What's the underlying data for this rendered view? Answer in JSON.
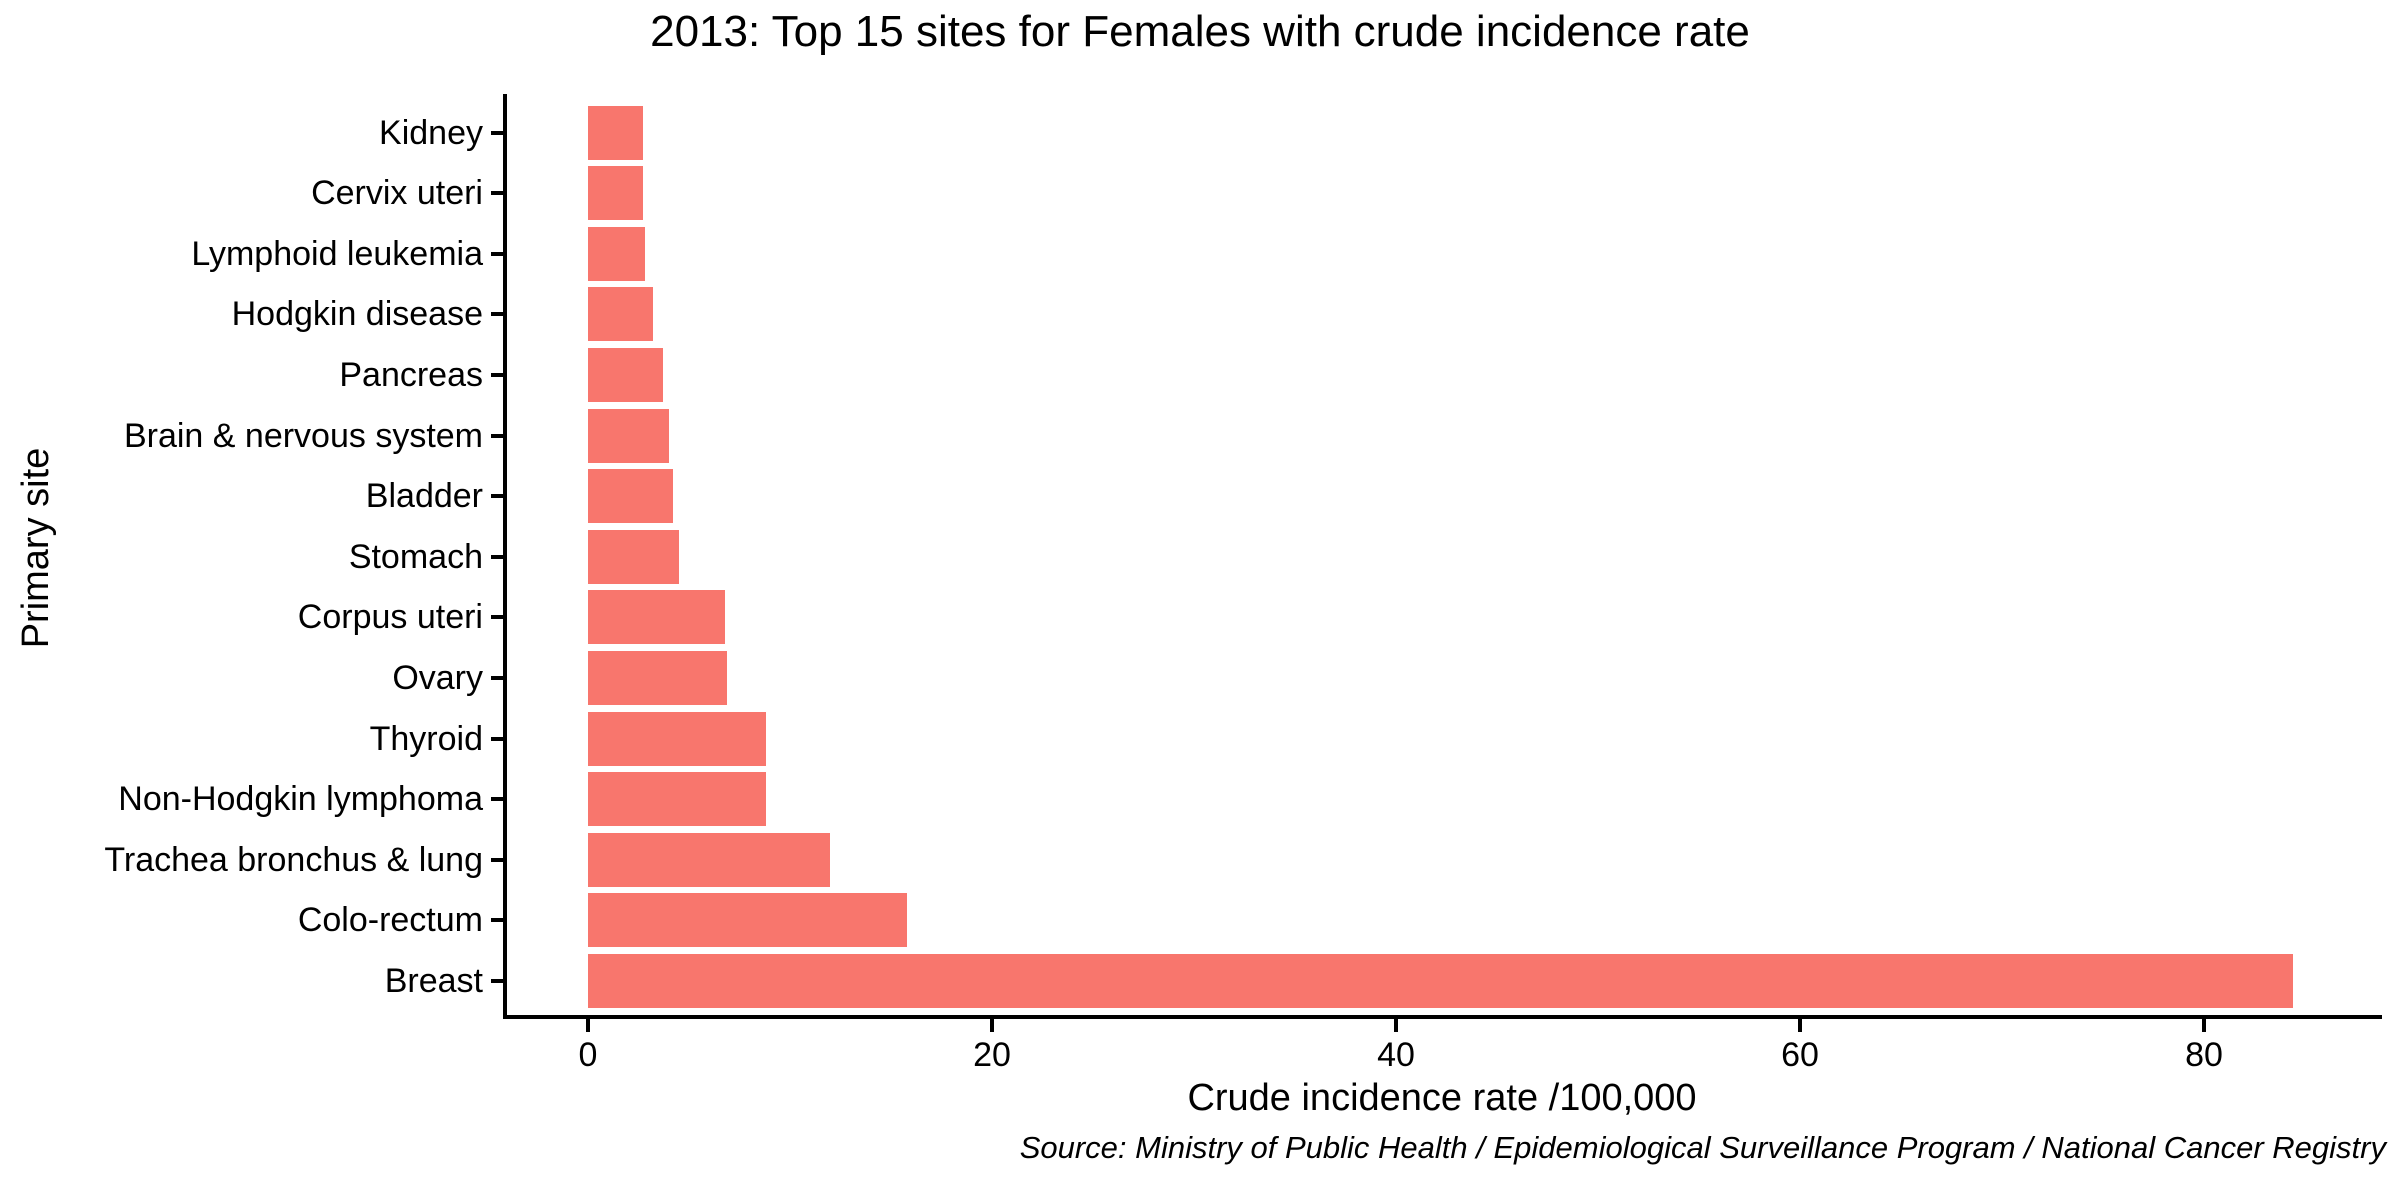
{
  "title": "2013: Top 15 sites for Females with crude incidence rate",
  "source_note": "Source: Ministry of Public Health / Epidemiological Surveillance Program / National Cancer Registry",
  "colors": {
    "bar": "#F8766D",
    "axis": "#000000",
    "text": "#000000",
    "background": "#FFFFFF"
  },
  "chart_data": {
    "type": "bar",
    "orientation": "horizontal",
    "title": "2013: Top 15 sites for Females with crude incidence rate",
    "xlabel": "Crude incidence rate /100,000",
    "ylabel": "Primary site",
    "categories": [
      "Kidney",
      "Cervix uteri",
      "Lymphoid leukemia",
      "Hodgkin disease",
      "Pancreas",
      "Brain & nervous system",
      "Bladder",
      "Stomach",
      "Corpus uteri",
      "Ovary",
      "Thyroid",
      "Non-Hodgkin lymphoma",
      "Trachea bronchus & lung",
      "Colo-rectum",
      "Breast"
    ],
    "values": [
      2.7,
      2.7,
      2.8,
      3.2,
      3.7,
      4.0,
      4.2,
      4.5,
      6.8,
      6.9,
      8.8,
      8.8,
      12.0,
      15.8,
      84.4
    ],
    "x_ticks": [
      0,
      20,
      40,
      60,
      80
    ],
    "xlim": [
      -4.2,
      88.8
    ],
    "grid": "off",
    "legend": "none",
    "source_note": "Source: Ministry of Public Health / Epidemiological Surveillance Program / National Cancer Registry"
  }
}
